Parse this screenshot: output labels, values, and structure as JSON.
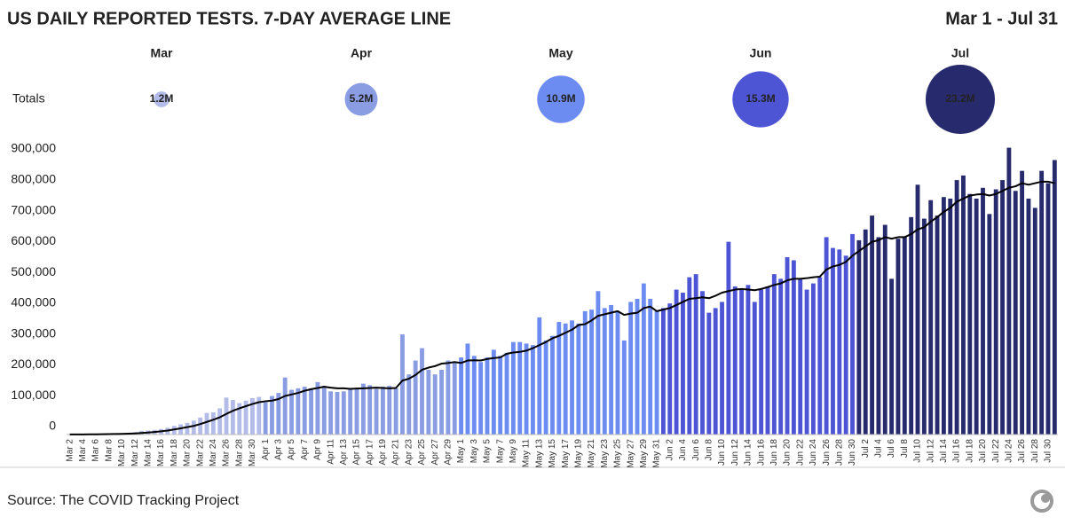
{
  "chart_data": {
    "type": "bar",
    "title": "US DAILY REPORTED TESTS. 7-DAY AVERAGE LINE",
    "date_range": "Mar 1 - Jul 31",
    "totals_label": "Totals",
    "source": "Source: The COVID Tracking Project",
    "line_color": "#000000",
    "ylim": [
      0,
      950000
    ],
    "yticks": [
      0,
      {
        "value": 100000,
        "label": "100,000"
      },
      {
        "value": 200000,
        "label": "200,000"
      },
      {
        "value": 300000,
        "label": "300,000"
      },
      {
        "value": 400000,
        "label": "400,000"
      },
      {
        "value": 500000,
        "label": "500,000"
      },
      {
        "value": 600000,
        "label": "600,000"
      },
      {
        "value": 700000,
        "label": "700,000"
      },
      {
        "value": 800000,
        "label": "800,000"
      },
      {
        "value": 900000,
        "label": "900,000"
      }
    ],
    "series": [
      {
        "name": "Mar",
        "color": "#b3bce9",
        "total": 1200000,
        "total_label": "1.2M",
        "categories": [
          "Mar 2",
          null,
          "Mar 4",
          null,
          "Mar 6",
          null,
          "Mar 8",
          null,
          "Mar 10",
          null,
          "Mar 12",
          null,
          "Mar 14",
          null,
          "Mar 16",
          null,
          "Mar 18",
          null,
          "Mar 20",
          null,
          "Mar 22",
          null,
          "Mar 24",
          null,
          "Mar 26",
          null,
          "Mar 28",
          null,
          "Mar 30",
          null
        ],
        "values": [
          300,
          500,
          700,
          1200,
          1500,
          1700,
          2500,
          3000,
          4500,
          5000,
          8000,
          12000,
          13000,
          15000,
          18000,
          22000,
          28000,
          33000,
          38000,
          45000,
          55000,
          70000,
          72000,
          85000,
          120000,
          112000,
          102000,
          110000,
          118000,
          122000
        ],
        "average": [
          300,
          400,
          500,
          700,
          900,
          1100,
          1400,
          1800,
          2300,
          2800,
          3600,
          5000,
          6500,
          8300,
          10500,
          13000,
          16500,
          20000,
          24000,
          28000,
          34000,
          41000,
          48000,
          56000,
          67000,
          77000,
          85000,
          92000,
          99000,
          105000
        ]
      },
      {
        "name": "Apr",
        "color": "#8a9de3",
        "total": 5200000,
        "total_label": "5.2M",
        "categories": [
          "Apr 1",
          null,
          "Apr 3",
          null,
          "Apr 5",
          null,
          "Apr 7",
          null,
          "Apr 9",
          null,
          "Apr 11",
          null,
          "Apr 13",
          null,
          "Apr 15",
          null,
          "Apr 17",
          null,
          "Apr 19",
          null,
          "Apr 21",
          null,
          "Apr 23",
          null,
          "Apr 25",
          null,
          "Apr 27",
          null,
          "Apr 29",
          null
        ],
        "values": [
          105000,
          125000,
          135000,
          185000,
          145000,
          150000,
          155000,
          150000,
          170000,
          158000,
          140000,
          138000,
          140000,
          148000,
          150000,
          165000,
          160000,
          148000,
          155000,
          158000,
          150000,
          325000,
          195000,
          240000,
          280000,
          210000,
          195000,
          210000,
          240000,
          235000
        ],
        "average": [
          108000,
          110000,
          115000,
          125000,
          130000,
          135000,
          142000,
          147000,
          151000,
          155000,
          152000,
          150000,
          150000,
          148000,
          149000,
          150000,
          151000,
          152000,
          151000,
          150000,
          151000,
          175000,
          181000,
          193000,
          210000,
          217000,
          222000,
          230000,
          232000,
          235000
        ]
      },
      {
        "name": "May",
        "color": "#6c8cf2",
        "total": 10900000,
        "total_label": "10.9M",
        "categories": [
          "May 1",
          null,
          "May 3",
          null,
          "May 5",
          null,
          "May 7",
          null,
          "May 9",
          null,
          "May 11",
          null,
          "May 13",
          null,
          "May 15",
          null,
          "May 17",
          null,
          "May 19",
          null,
          "May 21",
          null,
          "May 23",
          null,
          "May 25",
          null,
          "May 27",
          null,
          "May 29",
          null,
          "May 31"
        ],
        "values": [
          250000,
          295000,
          255000,
          235000,
          250000,
          275000,
          255000,
          265000,
          300000,
          300000,
          295000,
          290000,
          380000,
          305000,
          320000,
          365000,
          360000,
          370000,
          360000,
          400000,
          405000,
          465000,
          410000,
          420000,
          400000,
          305000,
          430000,
          440000,
          490000,
          440000,
          400000
        ],
        "average": [
          232000,
          240000,
          241000,
          240000,
          245000,
          248000,
          250000,
          262000,
          266000,
          268000,
          272000,
          280000,
          290000,
          300000,
          312000,
          320000,
          330000,
          340000,
          355000,
          358000,
          370000,
          385000,
          390000,
          395000,
          400000,
          388000,
          392000,
          395000,
          410000,
          415000,
          400000
        ]
      },
      {
        "name": "Jun",
        "color": "#4d55d5",
        "total": 15300000,
        "total_label": "15.3M",
        "categories": [
          null,
          "Jun 2",
          null,
          "Jun 4",
          null,
          "Jun 6",
          null,
          "Jun 8",
          null,
          "Jun 10",
          null,
          "Jun 12",
          null,
          "Jun 14",
          null,
          "Jun 16",
          null,
          "Jun 18",
          null,
          "Jun 20",
          null,
          "Jun 22",
          null,
          "Jun 24",
          null,
          "Jun 26",
          null,
          "Jun 28",
          null,
          "Jun 30"
        ],
        "values": [
          410000,
          425000,
          470000,
          460000,
          510000,
          520000,
          465000,
          395000,
          410000,
          430000,
          625000,
          480000,
          470000,
          485000,
          430000,
          470000,
          480000,
          520000,
          505000,
          575000,
          565000,
          505000,
          470000,
          490000,
          510000,
          640000,
          605000,
          600000,
          580000,
          650000
        ],
        "average": [
          405000,
          410000,
          420000,
          430000,
          440000,
          442000,
          445000,
          442000,
          450000,
          460000,
          465000,
          470000,
          472000,
          470000,
          468000,
          472000,
          478000,
          485000,
          490000,
          500000,
          505000,
          505000,
          507000,
          510000,
          512000,
          535000,
          545000,
          550000,
          560000,
          580000
        ]
      },
      {
        "name": "Jul",
        "color": "#272b6d",
        "total": 23200000,
        "total_label": "23.2M",
        "categories": [
          null,
          "Jul 2",
          null,
          "Jul 4",
          null,
          "Jul 6",
          null,
          "Jul 8",
          null,
          "Jul 10",
          null,
          "Jul 12",
          null,
          "Jul 14",
          null,
          "Jul 16",
          null,
          "Jul 18",
          null,
          "Jul 20",
          null,
          "Jul 22",
          null,
          "Jul 24",
          null,
          "Jul 26",
          null,
          "Jul 28",
          null,
          "Jul 30",
          null
        ],
        "values": [
          630000,
          665000,
          710000,
          640000,
          680000,
          505000,
          635000,
          640000,
          705000,
          810000,
          700000,
          760000,
          710000,
          770000,
          765000,
          825000,
          840000,
          780000,
          765000,
          800000,
          715000,
          795000,
          825000,
          930000,
          790000,
          855000,
          765000,
          735000,
          855000,
          815000,
          890000
        ],
        "average": [
          595000,
          610000,
          625000,
          630000,
          640000,
          635000,
          640000,
          640000,
          650000,
          665000,
          672000,
          690000,
          705000,
          722000,
          735000,
          755000,
          765000,
          775000,
          778000,
          780000,
          775000,
          780000,
          790000,
          800000,
          805000,
          815000,
          810000,
          815000,
          820000,
          820000,
          815000
        ]
      }
    ]
  }
}
